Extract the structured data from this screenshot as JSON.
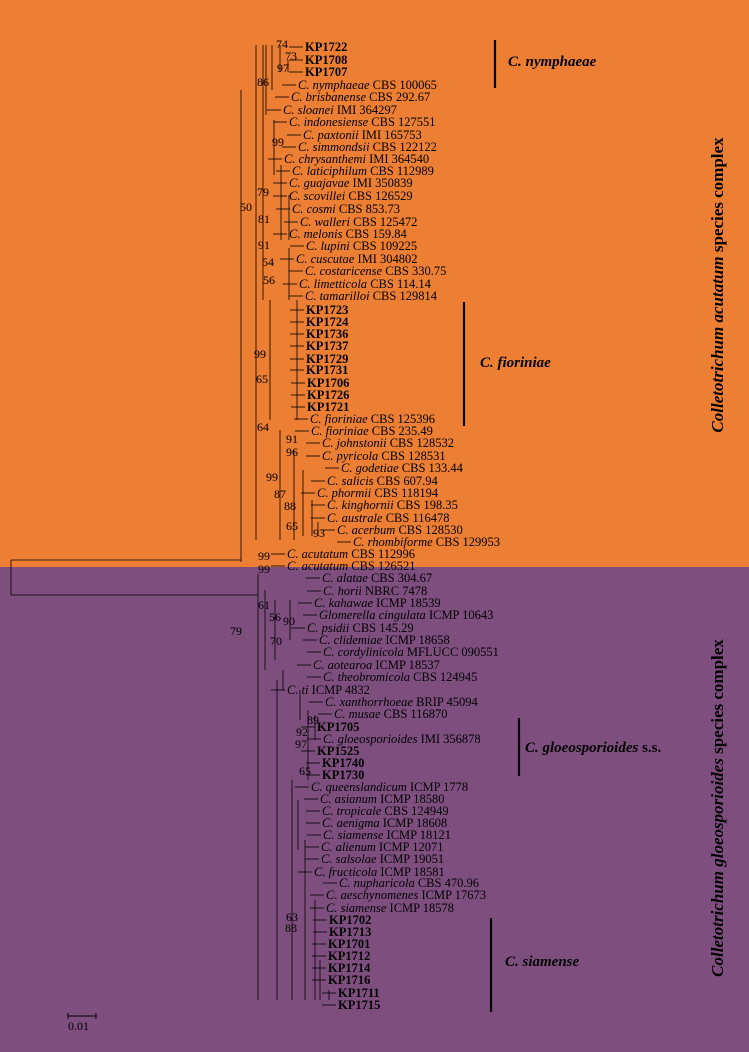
{
  "colors": {
    "acutatum_bg": "#EC7F34",
    "gloeo_bg": "#7E4F7E",
    "line": "#000000"
  },
  "complexes": {
    "acutatum": {
      "italic": "Colletotrichum acutatum",
      "rest": " species complex"
    },
    "gloeo": {
      "italic": "Colletotrichum gloeosporioides",
      "rest": " species complex"
    }
  },
  "clades": {
    "nymphaeae": {
      "italic": "C. nymphaeae",
      "rest": ""
    },
    "fioriniae": {
      "italic": "C. fioriniae",
      "rest": ""
    },
    "gloeosporioides": {
      "italic": "C. gloeosporioides",
      "rest": " s.s."
    },
    "siamense": {
      "italic": "C. siamense",
      "rest": ""
    }
  },
  "scale_bar": "0.01",
  "taxa": [
    {
      "sp": "",
      "st": "KP1722",
      "b": true
    },
    {
      "sp": "",
      "st": "KP1708",
      "b": true
    },
    {
      "sp": "",
      "st": "KP1707",
      "b": true
    },
    {
      "sp": "C. nymphaeae",
      "st": "CBS 100065"
    },
    {
      "sp": "C. brisbanense",
      "st": "CBS 292.67"
    },
    {
      "sp": "C. sloanei",
      "st": "IMI 364297"
    },
    {
      "sp": "C. indonesiense",
      "st": "CBS 127551"
    },
    {
      "sp": "C. paxtonii",
      "st": "IMI 165753"
    },
    {
      "sp": "C. simmondsii",
      "st": "CBS 122122"
    },
    {
      "sp": "C. chrysanthemi",
      "st": "IMI 364540"
    },
    {
      "sp": "C. laticiphilum",
      "st": "CBS 112989"
    },
    {
      "sp": "C. guajavae",
      "st": "IMI 350839"
    },
    {
      "sp": "C. scovillei",
      "st": "CBS 126529"
    },
    {
      "sp": "C. cosmi",
      "st": "CBS 853.73"
    },
    {
      "sp": "C. walleri",
      "st": "CBS 125472"
    },
    {
      "sp": "C. melonis",
      "st": "CBS 159.84"
    },
    {
      "sp": "C. lupini",
      "st": "CBS 109225"
    },
    {
      "sp": "C. cuscutae",
      "st": "IMI 304802"
    },
    {
      "sp": "C. costaricense",
      "st": "CBS 330.75"
    },
    {
      "sp": "C. limetticola",
      "st": "CBS 114.14"
    },
    {
      "sp": "C. tamarilloi",
      "st": "CBS 129814"
    },
    {
      "sp": "",
      "st": "KP1723",
      "b": true
    },
    {
      "sp": "",
      "st": "KP1724",
      "b": true
    },
    {
      "sp": "",
      "st": "KP1736",
      "b": true
    },
    {
      "sp": "",
      "st": "KP1737",
      "b": true
    },
    {
      "sp": "",
      "st": "KP1729",
      "b": true
    },
    {
      "sp": "",
      "st": "KP1731",
      "b": true
    },
    {
      "sp": "",
      "st": "KP1706",
      "b": true
    },
    {
      "sp": "",
      "st": "KP1726",
      "b": true
    },
    {
      "sp": "",
      "st": "KP1721",
      "b": true
    },
    {
      "sp": "C. fioriniae",
      "st": "CBS 125396"
    },
    {
      "sp": "C. fioriniae",
      "st": "CBS 235.49"
    },
    {
      "sp": "C. johnstonii",
      "st": "CBS 128532"
    },
    {
      "sp": "C. pyricola",
      "st": "CBS 128531"
    },
    {
      "sp": "C. godetiae",
      "st": "CBS 133.44"
    },
    {
      "sp": "C. salicis",
      "st": "CBS 607.94"
    },
    {
      "sp": "C. phormii",
      "st": "CBS 118194"
    },
    {
      "sp": "C. kinghornii",
      "st": "CBS 198.35"
    },
    {
      "sp": "C. australe",
      "st": "CBS 116478"
    },
    {
      "sp": "C. acerbum",
      "st": "CBS 128530"
    },
    {
      "sp": "C. rhombiforme",
      "st": "CBS 129953"
    },
    {
      "sp": "C. acutatum",
      "st": "CBS 112996"
    },
    {
      "sp": "C. acutatum",
      "st": "CBS 126521"
    },
    {
      "sp": "C. alatae",
      "st": "CBS 304.67"
    },
    {
      "sp": "C. horii",
      "st": "NBRC 7478"
    },
    {
      "sp": "C. kahawae",
      "st": "ICMP 18539"
    },
    {
      "sp": "Glomerella cingulata",
      "st": "ICMP 10643"
    },
    {
      "sp": "C. psidii",
      "st": "CBS 145.29"
    },
    {
      "sp": "C. clidemiae",
      "st": "ICMP 18658"
    },
    {
      "sp": "C. cordylinicola",
      "st": "MFLUCC 090551"
    },
    {
      "sp": "C. aotearoa",
      "st": "ICMP 18537"
    },
    {
      "sp": "C. theobromicola",
      "st": "CBS 124945"
    },
    {
      "sp": "C. ti",
      "st": "ICMP 4832"
    },
    {
      "sp": "C. xanthorrhoeae",
      "st": "BRIP 45094"
    },
    {
      "sp": "C. musae",
      "st": "CBS 116870"
    },
    {
      "sp": "",
      "st": "KP1705",
      "b": true
    },
    {
      "sp": "C. gloeosporioides",
      "st": "IMI 356878"
    },
    {
      "sp": "",
      "st": "KP1525",
      "b": true
    },
    {
      "sp": "",
      "st": "KP1740",
      "b": true
    },
    {
      "sp": "",
      "st": "KP1730",
      "b": true
    },
    {
      "sp": "C. queenslandicum",
      "st": "ICMP 1778"
    },
    {
      "sp": "C. asianum",
      "st": "ICMP 18580"
    },
    {
      "sp": "C. tropicale",
      "st": "CBS 124949"
    },
    {
      "sp": "C. aenigma",
      "st": "ICMP 18608"
    },
    {
      "sp": "C. siamense",
      "st": "ICMP 18121"
    },
    {
      "sp": "C. alienum",
      "st": "ICMP 12071"
    },
    {
      "sp": "C. salsolae",
      "st": "ICMP 19051"
    },
    {
      "sp": "C. fructicola",
      "st": "ICMP 18581"
    },
    {
      "sp": "C. nupharicola",
      "st": "CBS 470.96"
    },
    {
      "sp": "C. aeschynomenes",
      "st": "ICMP 17673"
    },
    {
      "sp": "C. siamense",
      "st": "ICMP 18578"
    },
    {
      "sp": "",
      "st": "KP1702",
      "b": true
    },
    {
      "sp": "",
      "st": "KP1713",
      "b": true
    },
    {
      "sp": "",
      "st": "KP1701",
      "b": true
    },
    {
      "sp": "",
      "st": "KP1712",
      "b": true
    },
    {
      "sp": "",
      "st": "KP1714",
      "b": true
    },
    {
      "sp": "",
      "st": "KP1716",
      "b": true
    },
    {
      "sp": "",
      "st": "KP1711",
      "b": true
    },
    {
      "sp": "",
      "st": "KP1715",
      "b": true
    }
  ],
  "bootstrap": [
    "74",
    "73",
    "97",
    "86",
    "99",
    "79",
    "50",
    "81",
    "91",
    "54",
    "56",
    "99",
    "65",
    "64",
    "91",
    "96",
    "99",
    "87",
    "88",
    "65",
    "93",
    "99",
    "99",
    "61",
    "56",
    "70",
    "90",
    "89",
    "92",
    "97",
    "65",
    "79",
    "63",
    "88"
  ]
}
